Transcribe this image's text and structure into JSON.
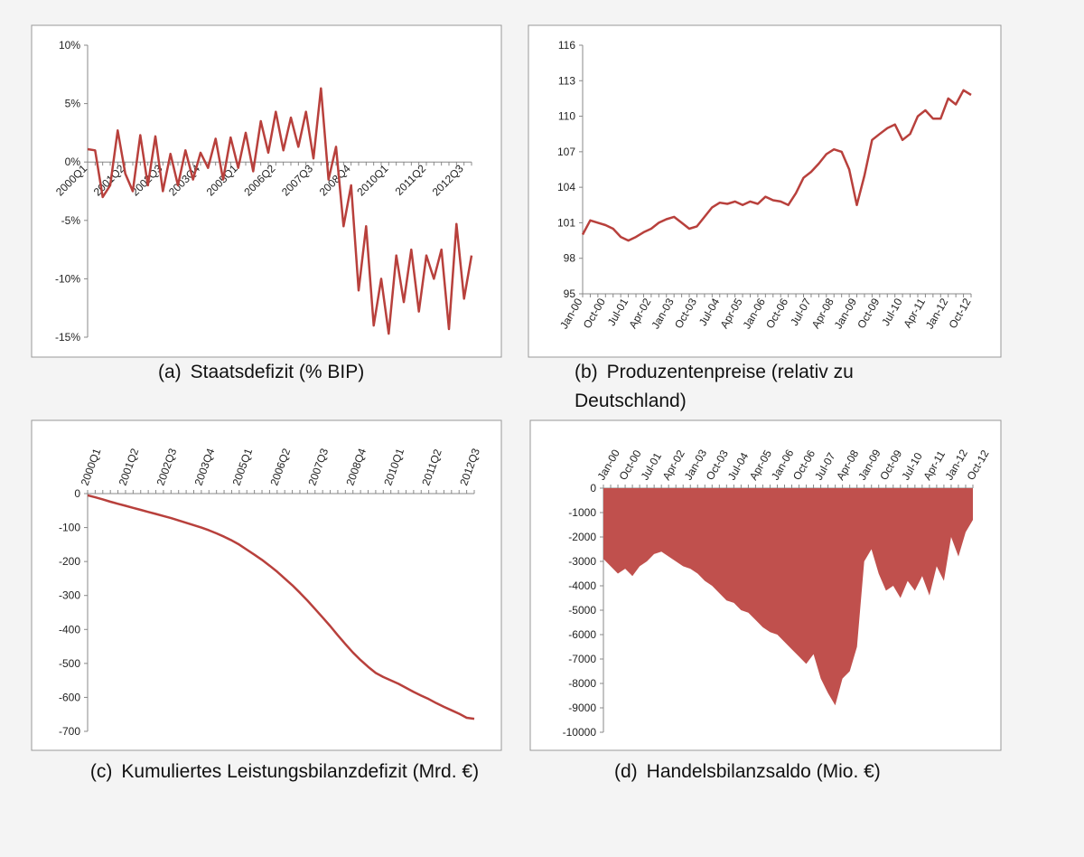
{
  "chart_data": [
    {
      "type": "line",
      "label": "(a)",
      "title": "Staatsdefizit (% BIP)",
      "color": "#b8403c",
      "categories": [
        "2000Q1",
        null,
        null,
        null,
        null,
        "2001Q2",
        null,
        null,
        null,
        null,
        "2002Q3",
        null,
        null,
        null,
        null,
        "2003Q4",
        null,
        null,
        null,
        null,
        "2005Q1",
        null,
        null,
        null,
        null,
        "2006Q2",
        null,
        null,
        null,
        null,
        "2007Q3",
        null,
        null,
        null,
        null,
        "2008Q4",
        null,
        null,
        null,
        null,
        "2010Q1",
        null,
        null,
        null,
        null,
        "2011Q2",
        null,
        null,
        null,
        null,
        "2012Q3",
        null
      ],
      "values": [
        1.1,
        1.0,
        -3,
        -2,
        2.7,
        -1,
        -2.5,
        2.3,
        -2,
        2.2,
        -2.5,
        0.7,
        -2,
        1,
        -1.5,
        0.8,
        -0.5,
        2,
        -1.5,
        2.1,
        -0.5,
        2.5,
        -0.8,
        3.5,
        0.8,
        4.3,
        1,
        3.8,
        1.3,
        4.3,
        0.3,
        6.3,
        -1.5,
        1.3,
        -5.5,
        -2,
        -11,
        -5.5,
        -14,
        -10,
        -14.7,
        -8,
        -12,
        -7.5,
        -12.8,
        -8,
        -10,
        -7.5,
        -14.3,
        -5.3,
        -11.7,
        -8
      ],
      "ylim": [
        -15,
        10
      ],
      "yticks": [
        {
          "value": -15,
          "label": "-15%"
        },
        {
          "value": -10,
          "label": "-10%"
        },
        {
          "value": -5,
          "label": "-5%"
        },
        {
          "value": 0,
          "label": "0%"
        },
        {
          "value": 5,
          "label": "5%"
        },
        {
          "value": 10,
          "label": "10%"
        }
      ]
    },
    {
      "type": "line",
      "label": "(b)",
      "title": "Produzentenpreise (relativ zu Deutschland)",
      "color": "#b8403c",
      "categories": [
        "Jan-00",
        null,
        null,
        "Oct-00",
        null,
        null,
        "Jul-01",
        null,
        null,
        "Apr-02",
        null,
        null,
        "Jan-03",
        null,
        null,
        "Oct-03",
        null,
        null,
        "Jul-04",
        null,
        null,
        "Apr-05",
        null,
        null,
        "Jan-06",
        null,
        null,
        "Oct-06",
        null,
        null,
        "Jul-07",
        null,
        null,
        "Apr-08",
        null,
        null,
        "Jan-09",
        null,
        null,
        "Oct-09",
        null,
        null,
        "Jul-10",
        null,
        null,
        "Apr-11",
        null,
        null,
        "Jan-12",
        null,
        null,
        "Oct-12"
      ],
      "values": [
        100,
        101.2,
        101,
        100.8,
        100.5,
        99.8,
        99.5,
        99.8,
        100.2,
        100.5,
        101,
        101.3,
        101.5,
        101,
        100.5,
        100.7,
        101.5,
        102.3,
        102.7,
        102.6,
        102.8,
        102.5,
        102.8,
        102.6,
        103.2,
        102.9,
        102.8,
        102.5,
        103.5,
        104.8,
        105.3,
        106,
        106.8,
        107.2,
        107,
        105.5,
        102.5,
        105,
        108,
        108.5,
        109,
        109.3,
        108,
        108.5,
        110,
        110.5,
        109.8,
        109.8,
        111.5,
        111,
        112.2,
        111.8
      ],
      "ylim": [
        95,
        116
      ],
      "yticks": [
        95,
        98,
        101,
        104,
        107,
        110,
        113,
        116
      ]
    },
    {
      "type": "line",
      "label": "(c)",
      "title": "Kumuliertes Leistungsbilanzdefizit (Mrd. €)",
      "color": "#b8403c",
      "categories": [
        "2000Q1",
        null,
        null,
        null,
        null,
        "2001Q2",
        null,
        null,
        null,
        null,
        "2002Q3",
        null,
        null,
        null,
        null,
        "2003Q4",
        null,
        null,
        null,
        null,
        "2005Q1",
        null,
        null,
        null,
        null,
        "2006Q2",
        null,
        null,
        null,
        null,
        "2007Q3",
        null,
        null,
        null,
        null,
        "2008Q4",
        null,
        null,
        null,
        null,
        "2010Q1",
        null,
        null,
        null,
        null,
        "2011Q2",
        null,
        null,
        null,
        null,
        "2012Q3",
        null
      ],
      "values": [
        -5,
        -11,
        -17,
        -24,
        -30,
        -36,
        -42,
        -48,
        -54,
        -60,
        -66,
        -72,
        -79,
        -86,
        -93,
        -100,
        -108,
        -117,
        -127,
        -138,
        -150,
        -165,
        -180,
        -195,
        -212,
        -230,
        -250,
        -270,
        -292,
        -315,
        -340,
        -365,
        -390,
        -417,
        -443,
        -468,
        -490,
        -510,
        -528,
        -540,
        -550,
        -560,
        -572,
        -584,
        -595,
        -605,
        -617,
        -628,
        -638,
        -648,
        -660,
        -663
      ],
      "ylim": [
        -700,
        0
      ],
      "yticks": [
        -700,
        -600,
        -500,
        -400,
        -300,
        -200,
        -100,
        0
      ]
    },
    {
      "type": "area",
      "label": "(d)",
      "title": "Handelsbilanzsaldo (Mio. €)",
      "color": "#c0504d",
      "categories": [
        "Jan-00",
        null,
        null,
        "Oct-00",
        null,
        null,
        "Jul-01",
        null,
        null,
        "Apr-02",
        null,
        null,
        "Jan-03",
        null,
        null,
        "Oct-03",
        null,
        null,
        "Jul-04",
        null,
        null,
        "Apr-05",
        null,
        null,
        "Jan-06",
        null,
        null,
        "Oct-06",
        null,
        null,
        "Jul-07",
        null,
        null,
        "Apr-08",
        null,
        null,
        "Jan-09",
        null,
        null,
        "Oct-09",
        null,
        null,
        "Jul-10",
        null,
        null,
        "Apr-11",
        null,
        null,
        "Jan-12",
        null,
        null,
        "Oct-12"
      ],
      "values": [
        -2900,
        -3200,
        -3500,
        -3300,
        -3600,
        -3200,
        -3000,
        -2700,
        -2600,
        -2800,
        -3000,
        -3200,
        -3300,
        -3500,
        -3800,
        -4000,
        -4300,
        -4600,
        -4700,
        -5000,
        -5100,
        -5400,
        -5700,
        -5900,
        -6000,
        -6300,
        -6600,
        -6900,
        -7200,
        -6800,
        -7800,
        -8400,
        -8900,
        -7800,
        -7500,
        -6500,
        -3000,
        -2500,
        -3500,
        -4200,
        -4000,
        -4500,
        -3800,
        -4200,
        -3600,
        -4400,
        -3200,
        -3800,
        -2000,
        -2800,
        -1800,
        -1300
      ],
      "ylim": [
        -10000,
        0
      ],
      "yticks": [
        -10000,
        -9000,
        -8000,
        -7000,
        -6000,
        -5000,
        -4000,
        -3000,
        -2000,
        -1000,
        0
      ]
    }
  ]
}
